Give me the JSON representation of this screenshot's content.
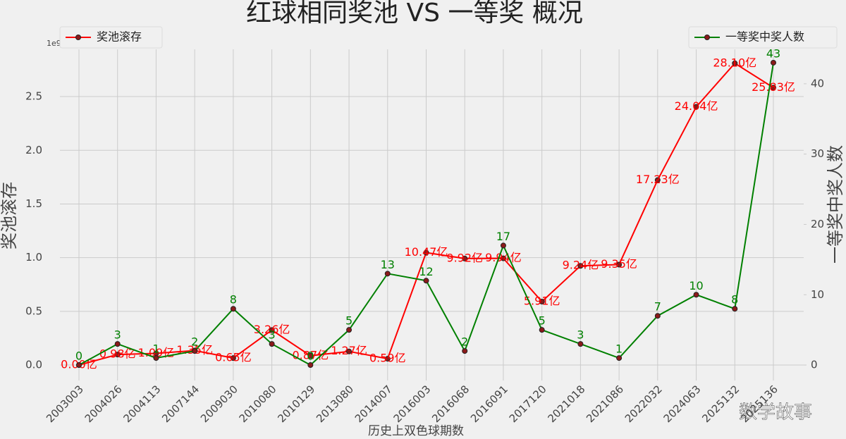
{
  "chart_data": {
    "type": "line",
    "title": "红球相同奖池 VS 一等奖 概况",
    "x_label": "历史上双色球期数",
    "y_label": "奖池滚存",
    "y2_label": "一等奖中奖人数",
    "y_offset_label": "1e9",
    "watermark": "数学故事",
    "categories": [
      "2003003",
      "2004026",
      "2004113",
      "2007144",
      "2009030",
      "2010080",
      "2010129",
      "2013080",
      "2014007",
      "2016003",
      "2016068",
      "2016091",
      "2017120",
      "2021018",
      "2021086",
      "2022032",
      "2024063",
      "2025132",
      "2025136"
    ],
    "ylim": [
      -0.144,
      2.94
    ],
    "yticks": [
      {
        "value": 0,
        "label": "0.0"
      },
      0.5,
      {
        "value": 1,
        "label": "1.0"
      },
      1.5,
      {
        "value": 2,
        "label": "2.0"
      },
      2.5
    ],
    "y2lim": [
      -2.2,
      44.9
    ],
    "y2ticks": [
      0,
      10,
      20,
      30,
      40
    ],
    "grid": true,
    "series": [
      {
        "name": "奖池滚存",
        "color": "#ff0000",
        "legend": "upper left",
        "values": [
          0,
          0.098,
          0.109,
          0.135,
          0.065,
          0.326,
          0.087,
          0.127,
          0.059,
          1.047,
          0.992,
          0.994,
          0.591,
          0.924,
          0.935,
          1.723,
          2.404,
          2.81,
          2.583
        ],
        "value_labels": [
          "0.00亿",
          "0.98亿",
          "1.09亿",
          "1.35亿",
          "0.65亿",
          "3.26亿",
          "0.87亿",
          "1.27亿",
          "0.59亿",
          "10.47亿",
          "9.92亿",
          "9.94亿",
          "5.91亿",
          "9.24亿",
          "9.35亿",
          "17.23亿",
          "24.04亿",
          "28.10亿",
          "25.83亿"
        ]
      },
      {
        "name": "一等奖中奖人数",
        "color": "#008000",
        "axis": "y2",
        "legend": "upper right",
        "values": [
          0,
          3,
          1,
          2,
          8,
          3,
          0,
          5,
          13,
          12,
          2,
          17,
          5,
          3,
          1,
          7,
          10,
          8,
          43
        ]
      }
    ]
  }
}
